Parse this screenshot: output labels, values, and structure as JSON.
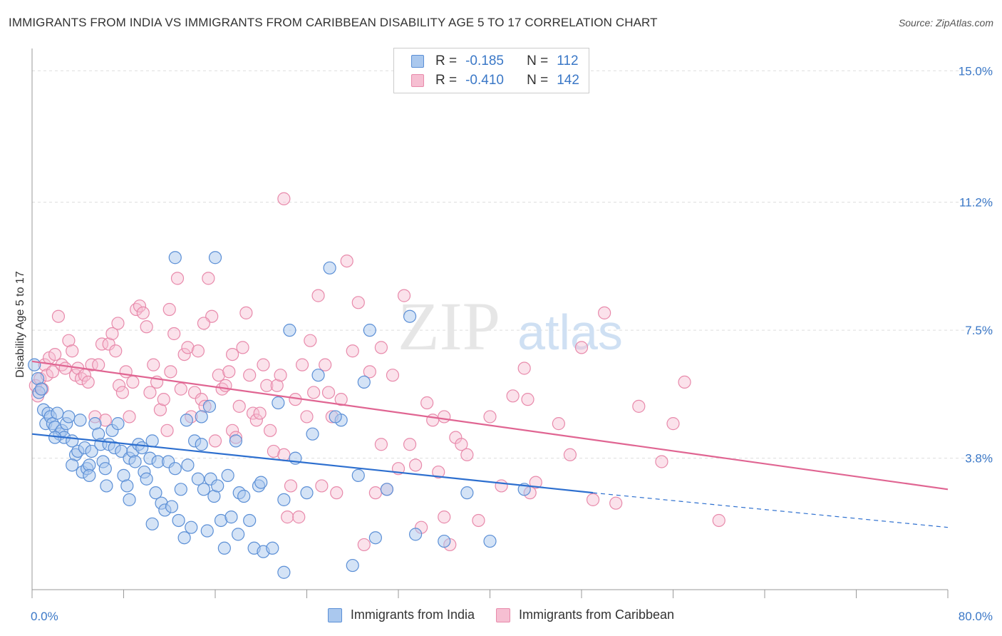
{
  "title": "IMMIGRANTS FROM INDIA VS IMMIGRANTS FROM CARIBBEAN DISABILITY AGE 5 TO 17 CORRELATION CHART",
  "source": "Source: ZipAtlas.com",
  "watermark": {
    "zip": "ZIP",
    "atlas": "atlas"
  },
  "legend_top": [
    {
      "r_label": "R =",
      "r_value": "-0.185",
      "n_label": "N =",
      "n_value": "112"
    },
    {
      "r_label": "R =",
      "r_value": "-0.410",
      "n_label": "N =",
      "n_value": "142"
    }
  ],
  "colors": {
    "india_fill": "#aac8ee",
    "india_stroke": "#5b8fd6",
    "india_line": "#2d6fcf",
    "carib_fill": "#f6bfd2",
    "carib_stroke": "#e88aab",
    "carib_line": "#e06592",
    "grid": "#dddddd",
    "axis": "#999999",
    "tick_text": "#3b78c7"
  },
  "chart_data": {
    "type": "scatter",
    "title": "IMMIGRANTS FROM INDIA VS IMMIGRANTS FROM CARIBBEAN DISABILITY AGE 5 TO 17 CORRELATION CHART",
    "xlabel": "",
    "ylabel": "Disability Age 5 to 17",
    "xlim": [
      0,
      80
    ],
    "ylim": [
      0,
      15.5
    ],
    "x_tick_labels": [
      "0.0%",
      "80.0%"
    ],
    "y_ticks": [
      3.8,
      7.5,
      11.2,
      15.0
    ],
    "y_tick_labels": [
      "3.8%",
      "7.5%",
      "11.2%",
      "15.0%"
    ],
    "grid": true,
    "legend": "top-center",
    "series": [
      {
        "name": "Immigrants from India",
        "r": -0.185,
        "n": 112,
        "trend": {
          "x0": 0,
          "y0": 4.5,
          "x1": 49,
          "y1": 2.8,
          "dash_to_x": 80,
          "dash_to_y": 1.8
        },
        "points": [
          [
            0.2,
            6.5
          ],
          [
            0.5,
            6.1
          ],
          [
            0.6,
            5.7
          ],
          [
            0.8,
            5.8
          ],
          [
            1.0,
            5.2
          ],
          [
            1.2,
            4.8
          ],
          [
            1.4,
            5.1
          ],
          [
            1.6,
            5.0
          ],
          [
            1.8,
            4.8
          ],
          [
            2.0,
            4.7
          ],
          [
            2.2,
            5.1
          ],
          [
            2.4,
            4.5
          ],
          [
            2.6,
            4.6
          ],
          [
            2.8,
            4.4
          ],
          [
            3.0,
            4.8
          ],
          [
            3.2,
            5.0
          ],
          [
            3.5,
            4.3
          ],
          [
            3.8,
            3.9
          ],
          [
            4.0,
            4.0
          ],
          [
            4.2,
            4.9
          ],
          [
            4.4,
            3.4
          ],
          [
            4.6,
            4.1
          ],
          [
            4.8,
            3.5
          ],
          [
            5.0,
            3.6
          ],
          [
            5.2,
            4.0
          ],
          [
            5.5,
            4.8
          ],
          [
            5.8,
            4.5
          ],
          [
            6.0,
            4.2
          ],
          [
            6.2,
            3.7
          ],
          [
            6.4,
            3.5
          ],
          [
            6.7,
            4.2
          ],
          [
            7.0,
            4.6
          ],
          [
            7.2,
            4.1
          ],
          [
            7.5,
            4.8
          ],
          [
            7.8,
            4.0
          ],
          [
            8.0,
            3.3
          ],
          [
            8.3,
            3.0
          ],
          [
            8.5,
            3.8
          ],
          [
            8.8,
            4.0
          ],
          [
            9.0,
            3.7
          ],
          [
            9.3,
            4.2
          ],
          [
            9.6,
            4.1
          ],
          [
            9.8,
            3.4
          ],
          [
            10.0,
            3.2
          ],
          [
            10.3,
            3.8
          ],
          [
            10.5,
            4.3
          ],
          [
            10.8,
            2.8
          ],
          [
            11.0,
            3.7
          ],
          [
            11.3,
            2.5
          ],
          [
            11.6,
            2.3
          ],
          [
            11.9,
            3.7
          ],
          [
            12.2,
            2.4
          ],
          [
            12.5,
            3.5
          ],
          [
            12.8,
            2.0
          ],
          [
            13.0,
            2.9
          ],
          [
            13.3,
            1.5
          ],
          [
            13.6,
            3.6
          ],
          [
            13.9,
            1.8
          ],
          [
            14.2,
            4.3
          ],
          [
            14.5,
            3.2
          ],
          [
            14.8,
            4.2
          ],
          [
            15.0,
            2.9
          ],
          [
            15.3,
            1.7
          ],
          [
            15.6,
            3.2
          ],
          [
            15.9,
            2.7
          ],
          [
            16.2,
            3.0
          ],
          [
            16.5,
            2.0
          ],
          [
            16.8,
            1.2
          ],
          [
            17.1,
            3.3
          ],
          [
            17.4,
            2.1
          ],
          [
            17.8,
            4.3
          ],
          [
            18.1,
            2.8
          ],
          [
            18.5,
            2.7
          ],
          [
            19.0,
            2.0
          ],
          [
            19.4,
            1.2
          ],
          [
            19.8,
            3.0
          ],
          [
            20.2,
            1.1
          ],
          [
            21.0,
            1.2
          ],
          [
            21.5,
            5.4
          ],
          [
            22.0,
            0.5
          ],
          [
            22.5,
            7.5
          ],
          [
            23.0,
            3.8
          ],
          [
            24.0,
            2.8
          ],
          [
            25.0,
            6.2
          ],
          [
            26.0,
            9.3
          ],
          [
            27.0,
            4.9
          ],
          [
            28.0,
            0.7
          ],
          [
            29.0,
            6.0
          ],
          [
            29.5,
            7.5
          ],
          [
            30.0,
            1.5
          ],
          [
            31.0,
            2.9
          ],
          [
            33.0,
            7.9
          ],
          [
            36.0,
            1.4
          ],
          [
            38.0,
            2.8
          ],
          [
            2.0,
            4.4
          ],
          [
            3.5,
            3.6
          ],
          [
            5.0,
            3.3
          ],
          [
            6.5,
            3.0
          ],
          [
            8.5,
            2.6
          ],
          [
            10.5,
            1.9
          ],
          [
            12.5,
            9.6
          ],
          [
            16.0,
            9.6
          ],
          [
            18.0,
            1.6
          ],
          [
            20.0,
            3.1
          ],
          [
            22.0,
            2.6
          ],
          [
            24.5,
            4.5
          ],
          [
            26.5,
            5.0
          ],
          [
            28.5,
            3.3
          ],
          [
            33.5,
            1.6
          ],
          [
            40.0,
            1.4
          ],
          [
            43.0,
            2.9
          ],
          [
            13.5,
            4.9
          ],
          [
            14.8,
            5.0
          ],
          [
            15.5,
            5.3
          ]
        ]
      },
      {
        "name": "Immigrants from Caribbean",
        "r": -0.41,
        "n": 142,
        "trend": {
          "x0": 0,
          "y0": 6.6,
          "x1": 80,
          "y1": 2.9
        },
        "points": [
          [
            0.3,
            5.9
          ],
          [
            0.5,
            5.6
          ],
          [
            0.7,
            6.1
          ],
          [
            0.9,
            5.8
          ],
          [
            1.1,
            6.5
          ],
          [
            1.3,
            6.2
          ],
          [
            1.5,
            6.7
          ],
          [
            1.8,
            6.3
          ],
          [
            2.0,
            6.8
          ],
          [
            2.3,
            7.9
          ],
          [
            2.6,
            6.5
          ],
          [
            2.9,
            6.4
          ],
          [
            3.2,
            7.2
          ],
          [
            3.5,
            6.9
          ],
          [
            3.8,
            6.2
          ],
          [
            4.0,
            6.4
          ],
          [
            4.3,
            6.1
          ],
          [
            4.6,
            6.2
          ],
          [
            4.9,
            6.0
          ],
          [
            5.2,
            6.5
          ],
          [
            5.5,
            5.0
          ],
          [
            5.8,
            6.5
          ],
          [
            6.1,
            7.1
          ],
          [
            6.4,
            4.9
          ],
          [
            6.7,
            7.1
          ],
          [
            7.0,
            7.4
          ],
          [
            7.3,
            6.9
          ],
          [
            7.6,
            5.9
          ],
          [
            7.9,
            5.7
          ],
          [
            8.2,
            6.3
          ],
          [
            8.5,
            5.0
          ],
          [
            8.8,
            6.0
          ],
          [
            9.1,
            8.1
          ],
          [
            9.4,
            8.2
          ],
          [
            9.7,
            8.0
          ],
          [
            10.0,
            7.6
          ],
          [
            10.3,
            5.7
          ],
          [
            10.6,
            6.5
          ],
          [
            10.9,
            6.0
          ],
          [
            11.2,
            5.2
          ],
          [
            11.5,
            5.5
          ],
          [
            11.8,
            4.6
          ],
          [
            12.1,
            6.3
          ],
          [
            12.4,
            7.4
          ],
          [
            12.7,
            9.0
          ],
          [
            13.0,
            5.8
          ],
          [
            13.3,
            6.8
          ],
          [
            13.6,
            7.0
          ],
          [
            13.9,
            5.0
          ],
          [
            14.2,
            5.7
          ],
          [
            14.5,
            6.9
          ],
          [
            14.8,
            5.5
          ],
          [
            15.1,
            5.3
          ],
          [
            15.4,
            9.0
          ],
          [
            15.7,
            7.9
          ],
          [
            16.0,
            4.3
          ],
          [
            16.3,
            6.2
          ],
          [
            16.6,
            5.8
          ],
          [
            16.9,
            5.9
          ],
          [
            17.2,
            6.3
          ],
          [
            17.5,
            4.6
          ],
          [
            17.8,
            4.4
          ],
          [
            18.1,
            5.3
          ],
          [
            18.4,
            7.0
          ],
          [
            18.7,
            8.0
          ],
          [
            19.0,
            6.2
          ],
          [
            19.3,
            5.1
          ],
          [
            19.6,
            4.9
          ],
          [
            19.9,
            5.1
          ],
          [
            20.2,
            6.5
          ],
          [
            20.5,
            5.9
          ],
          [
            20.8,
            4.6
          ],
          [
            21.1,
            4.0
          ],
          [
            21.4,
            5.9
          ],
          [
            21.7,
            6.2
          ],
          [
            22.0,
            3.9
          ],
          [
            22.3,
            2.1
          ],
          [
            22.6,
            3.0
          ],
          [
            23.0,
            5.5
          ],
          [
            23.3,
            2.1
          ],
          [
            23.6,
            6.5
          ],
          [
            24.0,
            5.0
          ],
          [
            24.3,
            7.2
          ],
          [
            24.6,
            5.7
          ],
          [
            25.0,
            8.5
          ],
          [
            25.3,
            3.0
          ],
          [
            25.6,
            6.5
          ],
          [
            25.9,
            5.7
          ],
          [
            26.2,
            5.0
          ],
          [
            26.6,
            2.8
          ],
          [
            27.0,
            5.5
          ],
          [
            27.5,
            9.5
          ],
          [
            28.0,
            6.9
          ],
          [
            28.5,
            8.3
          ],
          [
            29.0,
            1.3
          ],
          [
            29.5,
            6.3
          ],
          [
            30.0,
            2.8
          ],
          [
            30.5,
            4.2
          ],
          [
            31.0,
            2.9
          ],
          [
            31.5,
            6.2
          ],
          [
            32.0,
            3.5
          ],
          [
            32.5,
            8.5
          ],
          [
            33.0,
            4.2
          ],
          [
            33.5,
            3.6
          ],
          [
            34.0,
            1.8
          ],
          [
            34.5,
            5.4
          ],
          [
            35.0,
            4.9
          ],
          [
            35.5,
            3.4
          ],
          [
            36.0,
            5.0
          ],
          [
            36.5,
            1.3
          ],
          [
            37.0,
            4.4
          ],
          [
            37.5,
            4.2
          ],
          [
            38.0,
            3.9
          ],
          [
            39.0,
            2.0
          ],
          [
            40.0,
            5.0
          ],
          [
            41.0,
            3.0
          ],
          [
            42.0,
            5.6
          ],
          [
            43.0,
            6.4
          ],
          [
            43.3,
            5.5
          ],
          [
            44.0,
            3.1
          ],
          [
            46.0,
            4.8
          ],
          [
            47.0,
            3.9
          ],
          [
            48.0,
            7.0
          ],
          [
            49.0,
            2.6
          ],
          [
            50.0,
            8.0
          ],
          [
            51.0,
            2.5
          ],
          [
            53.0,
            5.3
          ],
          [
            55.0,
            3.7
          ],
          [
            56.0,
            4.8
          ],
          [
            57.0,
            6.0
          ],
          [
            60.0,
            2.0
          ],
          [
            22.0,
            11.3
          ],
          [
            7.5,
            7.7
          ],
          [
            12.0,
            8.1
          ],
          [
            15.0,
            7.7
          ],
          [
            17.5,
            6.8
          ],
          [
            30.5,
            7.0
          ],
          [
            36.0,
            2.1
          ],
          [
            43.5,
            2.8
          ]
        ]
      }
    ]
  },
  "bottom_legend": [
    {
      "label": "Immigrants from India"
    },
    {
      "label": "Immigrants from Caribbean"
    }
  ]
}
